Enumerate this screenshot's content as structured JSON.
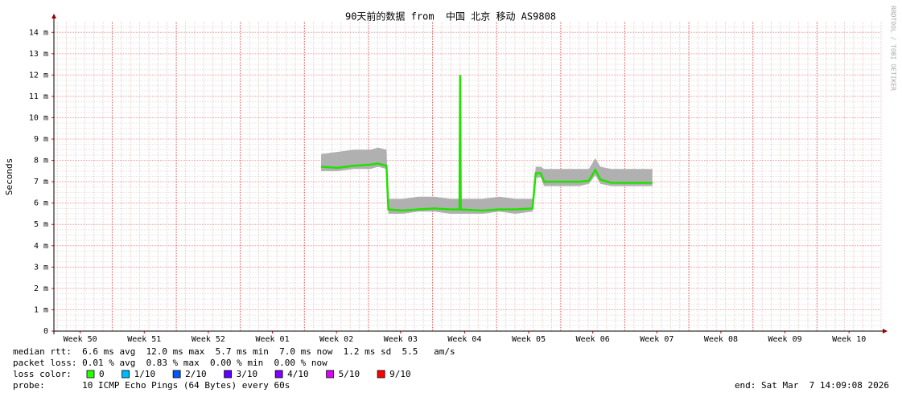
{
  "chart_data": {
    "type": "line",
    "title": "90天前的数据 from  中国 北京 移动 AS9808",
    "y_label": "Seconds",
    "watermark": "RRDTOOL / TOBI OETIKER",
    "xlim": [
      0.09,
      13
    ],
    "xticks": [
      {
        "value": 0.5,
        "label": "Week 50"
      },
      {
        "value": 1.5,
        "label": "Week 51"
      },
      {
        "value": 2.5,
        "label": "Week 52"
      },
      {
        "value": 3.5,
        "label": "Week 01"
      },
      {
        "value": 4.5,
        "label": "Week 02"
      },
      {
        "value": 5.5,
        "label": "Week 03"
      },
      {
        "value": 6.5,
        "label": "Week 04"
      },
      {
        "value": 7.5,
        "label": "Week 05"
      },
      {
        "value": 8.5,
        "label": "Week 06"
      },
      {
        "value": 9.5,
        "label": "Week 07"
      },
      {
        "value": 10.5,
        "label": "Week 08"
      },
      {
        "value": 11.5,
        "label": "Week 09"
      },
      {
        "value": 12.5,
        "label": "Week 10"
      }
    ],
    "ylim": [
      0,
      0.0145
    ],
    "yticks": [
      0,
      {
        "value": 0.001,
        "label": "1 m"
      },
      {
        "value": 0.002,
        "label": "2 m"
      },
      {
        "value": 0.003,
        "label": "3 m"
      },
      {
        "value": 0.004,
        "label": "4 m"
      },
      {
        "value": 0.005,
        "label": "5 m"
      },
      {
        "value": 0.006,
        "label": "6 m"
      },
      {
        "value": 0.007,
        "label": "7 m"
      },
      {
        "value": 0.008,
        "label": "8 m"
      },
      {
        "value": 0.009,
        "label": "9 m"
      },
      {
        "value": 0.01,
        "label": "10 m"
      },
      {
        "value": 0.011,
        "label": "11 m"
      },
      {
        "value": 0.012,
        "label": "12 m"
      },
      {
        "value": 0.013,
        "label": "13 m"
      },
      {
        "value": 0.014,
        "label": "14 m"
      }
    ],
    "grid": true,
    "x": [
      4.26,
      4.52,
      4.77,
      5.03,
      5.15,
      5.28,
      5.31,
      5.53,
      5.78,
      6.03,
      6.28,
      6.42,
      6.43,
      6.44,
      6.78,
      7.04,
      7.29,
      7.56,
      7.61,
      7.69,
      7.74,
      8.04,
      8.29,
      8.44,
      8.54,
      8.62,
      8.79,
      9.17,
      9.43
    ],
    "series": [
      {
        "name": "median rtt",
        "color": "#22e000",
        "values": [
          0.0077,
          0.00765,
          0.00775,
          0.0078,
          0.00785,
          0.00775,
          0.0057,
          0.00565,
          0.0057,
          0.00575,
          0.0057,
          0.0057,
          0.012,
          0.0057,
          0.00565,
          0.0057,
          0.0057,
          0.00575,
          0.0074,
          0.0074,
          0.007,
          0.007,
          0.007,
          0.00705,
          0.00755,
          0.0071,
          0.00695,
          0.00695,
          0.00695
        ]
      }
    ],
    "smoke": {
      "color": "#b0b0b0",
      "upper": [
        0.0083,
        0.0084,
        0.0085,
        0.0085,
        0.0086,
        0.0085,
        0.0062,
        0.0062,
        0.0063,
        0.0063,
        0.0062,
        0.0062,
        0.0126,
        0.0062,
        0.0062,
        0.0063,
        0.0062,
        0.0062,
        0.0077,
        0.0077,
        0.0076,
        0.0076,
        0.0076,
        0.0076,
        0.0081,
        0.0077,
        0.0076,
        0.0076,
        0.0076
      ],
      "lower": [
        0.0075,
        0.0075,
        0.0076,
        0.0076,
        0.0077,
        0.0076,
        0.0055,
        0.0055,
        0.0056,
        0.0056,
        0.0055,
        0.0055,
        0.0055,
        0.0055,
        0.0055,
        0.0056,
        0.0055,
        0.0056,
        0.0072,
        0.0072,
        0.0068,
        0.0068,
        0.0068,
        0.0069,
        0.0073,
        0.0069,
        0.0068,
        0.0068,
        0.0068
      ]
    },
    "stats": [
      "median rtt:  6.6 ms avg  12.0 ms max  5.7 ms min  7.0 ms now  1.2 ms sd  5.5   am/s",
      "packet loss: 0.01 % avg  0.83 % max  0.00 % min  0.00 % now"
    ],
    "loss_color_label": "loss color:",
    "loss_colors": [
      {
        "label": "0",
        "color": "#26ff00"
      },
      {
        "label": "1/10",
        "color": "#00b8ff"
      },
      {
        "label": "2/10",
        "color": "#0059ff"
      },
      {
        "label": "3/10",
        "color": "#5e00ff"
      },
      {
        "label": "4/10",
        "color": "#7e00ff"
      },
      {
        "label": "5/10",
        "color": "#dd00ff"
      },
      {
        "label": "9/10",
        "color": "#ff0000"
      }
    ],
    "probe": "probe:       10 ICMP Echo Pings (64 Bytes) every 60s",
    "end": "end: Sat Mar  7 14:09:08 2026"
  }
}
